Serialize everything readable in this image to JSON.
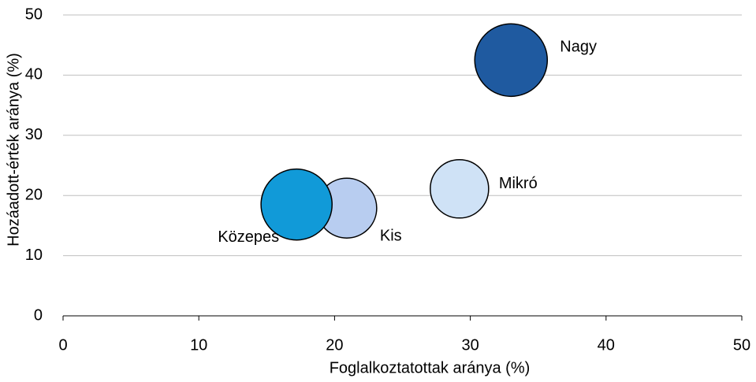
{
  "chart_data": {
    "type": "scatter",
    "x_label": "Foglalkoztatottak aránya (%)",
    "y_label": "Hozáadott-érték aránya (%)",
    "xlim": [
      0,
      50
    ],
    "xticks": [
      0,
      10,
      20,
      30,
      40,
      50
    ],
    "ylim": [
      0,
      50
    ],
    "yticks": [
      0,
      10,
      20,
      30,
      40,
      50
    ],
    "grid": true,
    "series": [
      {
        "name": "Nagy",
        "color": "#1f5aa0",
        "x": [
          33.0
        ],
        "y": [
          42.5
        ],
        "size": [
          21.2
        ]
      },
      {
        "name": "Mikró",
        "color": "#cfe2f6",
        "x": [
          29.2
        ],
        "y": [
          21.1
        ],
        "size": [
          13.7
        ]
      },
      {
        "name": "Kis",
        "color": "#b8cdf0",
        "x": [
          20.9
        ],
        "y": [
          17.9
        ],
        "size": [
          14.4
        ]
      },
      {
        "name": "Közepes",
        "color": "#119ad8",
        "x": [
          17.2
        ],
        "y": [
          18.5
        ],
        "size": [
          20.3
        ]
      }
    ]
  }
}
